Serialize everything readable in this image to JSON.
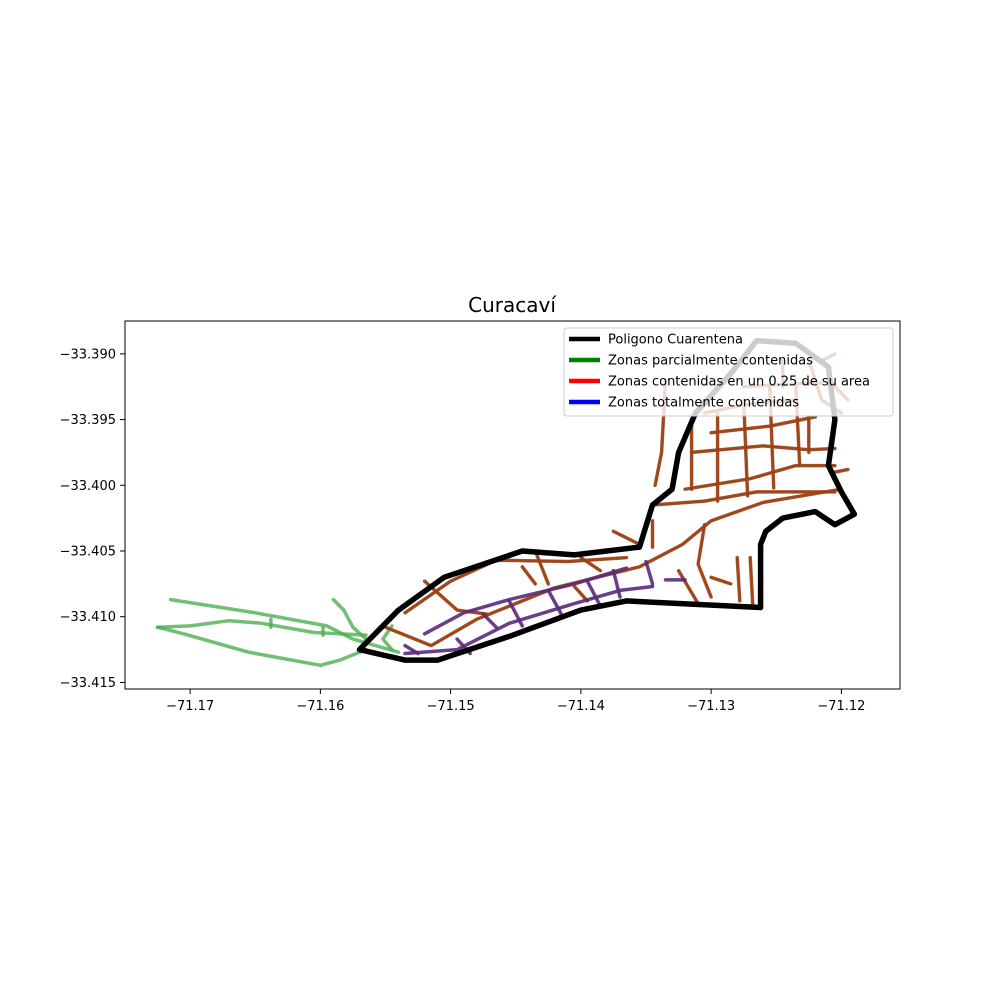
{
  "chart_data": {
    "type": "map",
    "title": "Curacaví",
    "xlim": [
      -71.175,
      -71.1155
    ],
    "ylim": [
      -33.4155,
      -33.3875
    ],
    "x_ticks": [
      -71.17,
      -71.16,
      -71.15,
      -71.14,
      -71.13,
      -71.12
    ],
    "x_tick_labels": [
      "−71.17",
      "−71.16",
      "−71.15",
      "−71.14",
      "−71.13",
      "−71.12"
    ],
    "y_ticks": [
      -33.39,
      -33.395,
      -33.4,
      -33.405,
      -33.41,
      -33.415
    ],
    "y_tick_labels": [
      "−33.390",
      "−33.395",
      "−33.400",
      "−33.405",
      "−33.410",
      "−33.415"
    ],
    "legend": {
      "placement": "upper-right",
      "entries": [
        {
          "label": "Poligono Cuarentena",
          "color": "#000000"
        },
        {
          "label": "Zonas parcialmente contenidas",
          "color": "#008000"
        },
        {
          "label": "Zonas contenidas en un 0.25 de su area",
          "color": "#ff0000"
        },
        {
          "label": "Zonas totalmente contenidas",
          "color": "#0000ff"
        }
      ]
    },
    "quarantine_polygon": [
      [
        -71.157,
        -33.4125
      ],
      [
        -71.154,
        -33.4095
      ],
      [
        -71.1505,
        -33.407
      ],
      [
        -71.1445,
        -33.405
      ],
      [
        -71.1405,
        -33.4053
      ],
      [
        -71.1355,
        -33.4047
      ],
      [
        -71.1345,
        -33.4015
      ],
      [
        -71.133,
        -33.4003
      ],
      [
        -71.1325,
        -33.3975
      ],
      [
        -71.1312,
        -33.3945
      ],
      [
        -71.1285,
        -33.3915
      ],
      [
        -71.1265,
        -33.389
      ],
      [
        -71.1235,
        -33.3892
      ],
      [
        -71.121,
        -33.391
      ],
      [
        -71.1205,
        -33.395
      ],
      [
        -71.121,
        -33.3985
      ],
      [
        -71.12,
        -33.4005
      ],
      [
        -71.119,
        -33.4022
      ],
      [
        -71.1205,
        -33.403
      ],
      [
        -71.122,
        -33.402
      ],
      [
        -71.1245,
        -33.4025
      ],
      [
        -71.1258,
        -33.4035
      ],
      [
        -71.1262,
        -33.4045
      ],
      [
        -71.1262,
        -33.4093
      ],
      [
        -71.1365,
        -33.4088
      ],
      [
        -71.14,
        -33.4095
      ],
      [
        -71.1455,
        -33.4115
      ],
      [
        -71.151,
        -33.4133
      ],
      [
        -71.1535,
        -33.4133
      ],
      [
        -71.157,
        -33.4125
      ]
    ],
    "partial_zones": [
      [
        [
          -71.1715,
          -33.4087
        ],
        [
          -71.165,
          -33.4097
        ],
        [
          -71.1595,
          -33.4107
        ],
        [
          -71.1575,
          -33.4117
        ],
        [
          -71.154,
          -33.4127
        ]
      ],
      [
        [
          -71.1725,
          -33.4108
        ],
        [
          -71.1705,
          -33.4113
        ],
        [
          -71.1655,
          -33.4127
        ],
        [
          -71.16,
          -33.4137
        ],
        [
          -71.1585,
          -33.4133
        ],
        [
          -71.1565,
          -33.4125
        ]
      ],
      [
        [
          -71.1725,
          -33.4108
        ],
        [
          -71.17,
          -33.4107
        ],
        [
          -71.167,
          -33.4103
        ],
        [
          -71.1645,
          -33.4105
        ],
        [
          -71.1605,
          -33.4112
        ],
        [
          -71.1565,
          -33.4114
        ]
      ],
      [
        [
          -71.159,
          -33.4087
        ],
        [
          -71.1582,
          -33.4095
        ],
        [
          -71.1575,
          -33.4108
        ],
        [
          -71.1565,
          -33.4117
        ]
      ],
      [
        [
          -71.1545,
          -33.4107
        ],
        [
          -71.1552,
          -33.4117
        ],
        [
          -71.1545,
          -33.4125
        ]
      ],
      [
        [
          -71.1638,
          -33.4102
        ],
        [
          -71.1638,
          -33.4108
        ]
      ],
      [
        [
          -71.1598,
          -33.4108
        ],
        [
          -71.1598,
          -33.4114
        ]
      ]
    ],
    "quarter_zones": [
      [
        [
          -71.155,
          -33.4108
        ],
        [
          -71.1515,
          -33.4122
        ],
        [
          -71.148,
          -33.4102
        ],
        [
          -71.142,
          -33.4078
        ],
        [
          -71.1355,
          -33.4062
        ],
        [
          -71.1322,
          -33.4045
        ],
        [
          -71.13,
          -33.4027
        ],
        [
          -71.126,
          -33.4013
        ],
        [
          -71.12,
          -33.4003
        ]
      ],
      [
        [
          -71.1535,
          -33.4097
        ],
        [
          -71.15,
          -33.4073
        ],
        [
          -71.1465,
          -33.4057
        ],
        [
          -71.141,
          -33.4058
        ],
        [
          -71.1365,
          -33.4055
        ]
      ],
      [
        [
          -71.152,
          -33.4073
        ],
        [
          -71.1495,
          -33.4095
        ],
        [
          -71.1472,
          -33.4098
        ]
      ],
      [
        [
          -71.1345,
          -33.4015
        ],
        [
          -71.1305,
          -33.4012
        ],
        [
          -71.1265,
          -33.4005
        ],
        [
          -71.1205,
          -33.4005
        ]
      ],
      [
        [
          -71.132,
          -33.4003
        ],
        [
          -71.127,
          -33.3995
        ],
        [
          -71.1235,
          -33.3985
        ],
        [
          -71.1205,
          -33.3985
        ]
      ],
      [
        [
          -71.1315,
          -33.3975
        ],
        [
          -71.126,
          -33.397
        ],
        [
          -71.1225,
          -33.3973
        ],
        [
          -71.1205,
          -33.3972
        ]
      ],
      [
        [
          -71.13,
          -33.396
        ],
        [
          -71.1255,
          -33.3955
        ],
        [
          -71.122,
          -33.3948
        ]
      ],
      [
        [
          -71.1305,
          -33.3945
        ],
        [
          -71.127,
          -33.3938
        ],
        [
          -71.1235,
          -33.3935
        ]
      ],
      [
        [
          -71.1275,
          -33.3925
        ],
        [
          -71.124,
          -33.3923
        ],
        [
          -71.1215,
          -33.3922
        ]
      ],
      [
        [
          -71.1295,
          -33.3945
        ],
        [
          -71.1295,
          -33.4012
        ]
      ],
      [
        [
          -71.1275,
          -33.3935
        ],
        [
          -71.1272,
          -33.4008
        ]
      ],
      [
        [
          -71.1255,
          -33.3925
        ],
        [
          -71.1252,
          -33.4002
        ]
      ],
      [
        [
          -71.1235,
          -33.3925
        ],
        [
          -71.1232,
          -33.3985
        ]
      ],
      [
        [
          -71.1225,
          -33.3948
        ],
        [
          -71.1225,
          -33.3975
        ]
      ],
      [
        [
          -71.1315,
          -33.3955
        ],
        [
          -71.1315,
          -33.4003
        ]
      ],
      [
        [
          -71.1305,
          -33.403
        ],
        [
          -71.131,
          -33.406
        ],
        [
          -71.13,
          -33.4085
        ]
      ],
      [
        [
          -71.128,
          -33.4055
        ],
        [
          -71.1278,
          -33.4088
        ]
      ],
      [
        [
          -71.127,
          -33.4055
        ],
        [
          -71.1268,
          -33.4092
        ]
      ],
      [
        [
          -71.13,
          -33.407
        ],
        [
          -71.1285,
          -33.4075
        ]
      ],
      [
        [
          -71.1345,
          -33.4027
        ],
        [
          -71.1345,
          -33.4047
        ]
      ],
      [
        [
          -71.1335,
          -33.392
        ],
        [
          -71.1338,
          -33.3975
        ],
        [
          -71.1343,
          -33.4
        ]
      ],
      [
        [
          -71.1245,
          -33.3905
        ],
        [
          -71.1245,
          -33.3925
        ]
      ],
      [
        [
          -71.1225,
          -33.3905
        ],
        [
          -71.1215,
          -33.3935
        ],
        [
          -71.12,
          -33.3945
        ]
      ],
      [
        [
          -71.1215,
          -33.3905
        ],
        [
          -71.1205,
          -33.39
        ]
      ],
      [
        [
          -71.121,
          -33.392
        ],
        [
          -71.1195,
          -33.3935
        ]
      ],
      [
        [
          -71.1205,
          -33.399
        ],
        [
          -71.1195,
          -33.3988
        ]
      ],
      [
        [
          -71.14,
          -33.4055
        ],
        [
          -71.1385,
          -33.4065
        ]
      ],
      [
        [
          -71.1435,
          -33.405
        ],
        [
          -71.1425,
          -33.4075
        ]
      ],
      [
        [
          -71.1445,
          -33.4062
        ],
        [
          -71.1435,
          -33.4075
        ]
      ],
      [
        [
          -71.1405,
          -33.4077
        ],
        [
          -71.1395,
          -33.4088
        ]
      ],
      [
        [
          -71.1375,
          -33.4035
        ],
        [
          -71.1355,
          -33.4045
        ]
      ],
      [
        [
          -71.1325,
          -33.4065
        ],
        [
          -71.131,
          -33.409
        ]
      ]
    ],
    "total_zones": [
      [
        [
          -71.1535,
          -33.4128
        ],
        [
          -71.1495,
          -33.4125
        ],
        [
          -71.1455,
          -33.4105
        ],
        [
          -71.1405,
          -33.409
        ],
        [
          -71.137,
          -33.408
        ],
        [
          -71.1345,
          -33.4077
        ]
      ],
      [
        [
          -71.152,
          -33.4113
        ],
        [
          -71.149,
          -33.4097
        ],
        [
          -71.1455,
          -33.4087
        ],
        [
          -71.1405,
          -33.4075
        ],
        [
          -71.1365,
          -33.4063
        ]
      ],
      [
        [
          -71.1495,
          -33.4117
        ],
        [
          -71.1485,
          -33.4128
        ]
      ],
      [
        [
          -71.1455,
          -33.4088
        ],
        [
          -71.1445,
          -33.4107
        ]
      ],
      [
        [
          -71.1425,
          -33.408
        ],
        [
          -71.1415,
          -33.4098
        ]
      ],
      [
        [
          -71.1395,
          -33.4073
        ],
        [
          -71.1385,
          -33.4092
        ]
      ],
      [
        [
          -71.1375,
          -33.4065
        ],
        [
          -71.137,
          -33.4085
        ]
      ],
      [
        [
          -71.135,
          -33.4058
        ],
        [
          -71.1345,
          -33.4075
        ]
      ],
      [
        [
          -71.1335,
          -33.4072
        ],
        [
          -71.132,
          -33.4072
        ]
      ],
      [
        [
          -71.1535,
          -33.4122
        ],
        [
          -71.1525,
          -33.4128
        ]
      ],
      [
        [
          -71.1475,
          -33.4098
        ],
        [
          -71.1465,
          -33.4108
        ]
      ]
    ]
  }
}
